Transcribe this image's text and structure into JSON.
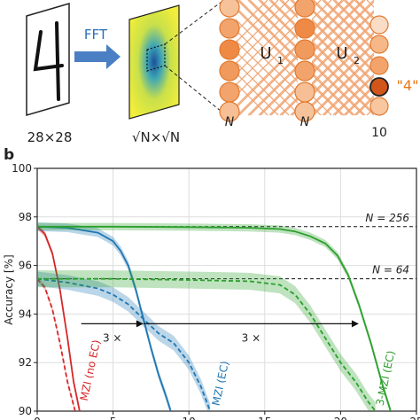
{
  "panel_a": {
    "input_label": "28×28",
    "fft_label": "FFT",
    "spectrum_label": "√N×√N",
    "layer1_label": "U",
    "layer1_sub": "1",
    "layer2_label": "U",
    "layer2_sub": "2",
    "output_class": "\"4\"",
    "n_label_1": "N",
    "n_label_2": "N",
    "output_count": "10"
  },
  "panel_b": {
    "label": "b"
  },
  "chart_data": {
    "type": "line",
    "ylabel": "Accuracy [%]",
    "xlim": [
      0,
      25
    ],
    "ylim": [
      90,
      100
    ],
    "xticks": [
      0,
      5,
      10,
      15,
      20,
      25
    ],
    "yticks": [
      90,
      92,
      94,
      96,
      98,
      100
    ],
    "grid": true,
    "reference_lines": [
      {
        "label": "N = 256",
        "y": 97.6
      },
      {
        "label": "N = 64",
        "y": 95.45
      }
    ],
    "annotations": [
      {
        "text": "3 ×",
        "from_x": 2.9,
        "to_x": 7.0,
        "y": 93.6
      },
      {
        "text": "3 ×",
        "from_x": 7.0,
        "to_x": 21.2,
        "y": 93.6
      }
    ],
    "series": [
      {
        "name": "MZI (no EC)",
        "color": "#d62728",
        "style": "solid",
        "x": [
          0,
          0.5,
          1.0,
          1.5,
          2.0,
          2.4,
          2.8
        ],
        "y": [
          97.6,
          97.3,
          96.5,
          95.0,
          93.0,
          91.2,
          90.0
        ],
        "band": 0.12
      },
      {
        "name": "MZI (no EC)",
        "color": "#d62728",
        "style": "dashed",
        "x": [
          0,
          0.5,
          1.0,
          1.5,
          2.0,
          2.5
        ],
        "y": [
          95.45,
          95.1,
          94.2,
          92.8,
          91.2,
          90.0
        ],
        "band": 0.1
      },
      {
        "name": "MZI (EC)",
        "color": "#1f77b4",
        "style": "solid",
        "x": [
          0,
          2,
          4,
          5,
          5.5,
          6,
          6.5,
          7,
          7.5,
          8,
          8.5,
          8.8
        ],
        "y": [
          97.6,
          97.55,
          97.35,
          97.0,
          96.6,
          96.0,
          95.0,
          93.8,
          92.6,
          91.5,
          90.6,
          90.0
        ],
        "band": 0.18
      },
      {
        "name": "MZI (EC)",
        "color": "#1f77b4",
        "style": "dashed",
        "x": [
          0,
          2,
          4,
          5,
          6,
          7,
          8,
          9,
          10,
          10.8,
          11.4
        ],
        "y": [
          95.45,
          95.3,
          95.05,
          94.8,
          94.4,
          93.8,
          93.2,
          92.8,
          92.0,
          91.0,
          90.0
        ],
        "band": 0.3
      },
      {
        "name": "3-MZI (EC)",
        "color": "#2ca02c",
        "style": "solid",
        "x": [
          0,
          5,
          10,
          14,
          16,
          17,
          18,
          19,
          19.8,
          20.5,
          21.2,
          22,
          22.8,
          23.3
        ],
        "y": [
          97.6,
          97.6,
          97.58,
          97.55,
          97.5,
          97.4,
          97.2,
          96.9,
          96.4,
          95.6,
          94.4,
          92.8,
          91.0,
          90.0
        ],
        "band": 0.15
      },
      {
        "name": "3-MZI (EC)",
        "color": "#2ca02c",
        "style": "dashed",
        "x": [
          0,
          5,
          10,
          14,
          16,
          17,
          18,
          19,
          20,
          21,
          21.8,
          22.3
        ],
        "y": [
          95.45,
          95.45,
          95.4,
          95.35,
          95.2,
          94.8,
          94.0,
          93.0,
          92.0,
          91.2,
          90.4,
          90.0
        ],
        "band": 0.35
      }
    ],
    "series_labels": [
      {
        "text": "MZI (no EC)",
        "color": "#d62728"
      },
      {
        "text": "MZI (EC)",
        "color": "#1f77b4"
      },
      {
        "text": "3-MZI (EC)",
        "color": "#2ca02c"
      }
    ]
  }
}
